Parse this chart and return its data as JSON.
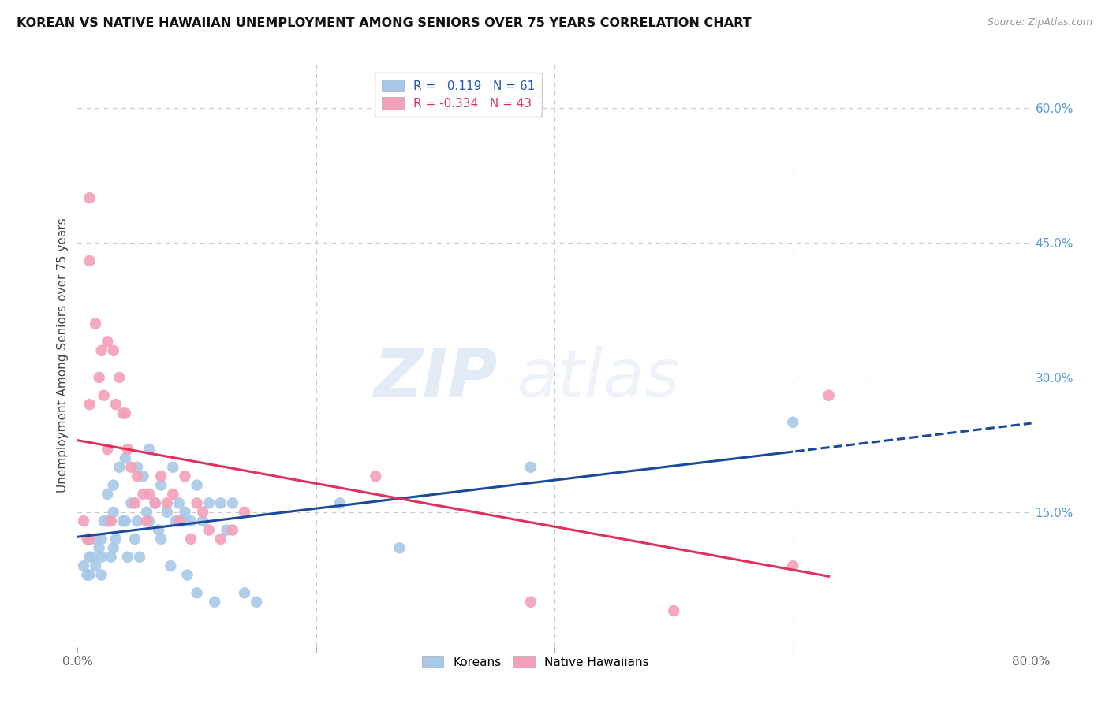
{
  "title": "KOREAN VS NATIVE HAWAIIAN UNEMPLOYMENT AMONG SENIORS OVER 75 YEARS CORRELATION CHART",
  "source": "Source: ZipAtlas.com",
  "ylabel": "Unemployment Among Seniors over 75 years",
  "xlim": [
    0.0,
    0.8
  ],
  "ylim": [
    -0.02,
    0.65
  ],
  "plot_ylim": [
    0.0,
    0.65
  ],
  "grid_color": "#c8c8c8",
  "background_color": "#ffffff",
  "koreans_color": "#a8c8e8",
  "hawaiians_color": "#f4a0b8",
  "korean_R": 0.119,
  "korean_N": 61,
  "hawaiian_R": -0.334,
  "hawaiian_N": 43,
  "korean_line_color": "#1a4a99",
  "hawaiian_line_color": "#e03060",
  "watermark_zip": "ZIP",
  "watermark_atlas": "atlas",
  "legend_korean_label": "Koreans",
  "legend_hawaiian_label": "Native Hawaiians",
  "koreans_x": [
    0.005,
    0.008,
    0.01,
    0.01,
    0.01,
    0.012,
    0.015,
    0.015,
    0.018,
    0.02,
    0.02,
    0.02,
    0.022,
    0.025,
    0.025,
    0.028,
    0.03,
    0.03,
    0.03,
    0.032,
    0.035,
    0.038,
    0.04,
    0.04,
    0.042,
    0.045,
    0.048,
    0.05,
    0.05,
    0.052,
    0.055,
    0.058,
    0.06,
    0.06,
    0.065,
    0.068,
    0.07,
    0.07,
    0.075,
    0.078,
    0.08,
    0.082,
    0.085,
    0.088,
    0.09,
    0.092,
    0.095,
    0.1,
    0.1,
    0.105,
    0.11,
    0.115,
    0.12,
    0.125,
    0.13,
    0.14,
    0.15,
    0.22,
    0.27,
    0.38,
    0.6
  ],
  "koreans_y": [
    0.09,
    0.08,
    0.12,
    0.1,
    0.08,
    0.1,
    0.12,
    0.09,
    0.11,
    0.12,
    0.1,
    0.08,
    0.14,
    0.17,
    0.14,
    0.1,
    0.18,
    0.15,
    0.11,
    0.12,
    0.2,
    0.14,
    0.21,
    0.14,
    0.1,
    0.16,
    0.12,
    0.2,
    0.14,
    0.1,
    0.19,
    0.15,
    0.22,
    0.14,
    0.16,
    0.13,
    0.18,
    0.12,
    0.15,
    0.09,
    0.2,
    0.14,
    0.16,
    0.14,
    0.15,
    0.08,
    0.14,
    0.18,
    0.06,
    0.14,
    0.16,
    0.05,
    0.16,
    0.13,
    0.16,
    0.06,
    0.05,
    0.16,
    0.11,
    0.2,
    0.25
  ],
  "hawaiians_x": [
    0.005,
    0.008,
    0.01,
    0.01,
    0.01,
    0.01,
    0.015,
    0.018,
    0.02,
    0.022,
    0.025,
    0.025,
    0.028,
    0.03,
    0.032,
    0.035,
    0.038,
    0.04,
    0.042,
    0.045,
    0.048,
    0.05,
    0.055,
    0.058,
    0.06,
    0.065,
    0.07,
    0.075,
    0.08,
    0.085,
    0.09,
    0.095,
    0.1,
    0.105,
    0.11,
    0.12,
    0.13,
    0.14,
    0.25,
    0.38,
    0.5,
    0.6,
    0.63
  ],
  "hawaiians_y": [
    0.14,
    0.12,
    0.5,
    0.43,
    0.27,
    0.12,
    0.36,
    0.3,
    0.33,
    0.28,
    0.34,
    0.22,
    0.14,
    0.33,
    0.27,
    0.3,
    0.26,
    0.26,
    0.22,
    0.2,
    0.16,
    0.19,
    0.17,
    0.14,
    0.17,
    0.16,
    0.19,
    0.16,
    0.17,
    0.14,
    0.19,
    0.12,
    0.16,
    0.15,
    0.13,
    0.12,
    0.13,
    0.15,
    0.19,
    0.05,
    0.04,
    0.09,
    0.28
  ]
}
